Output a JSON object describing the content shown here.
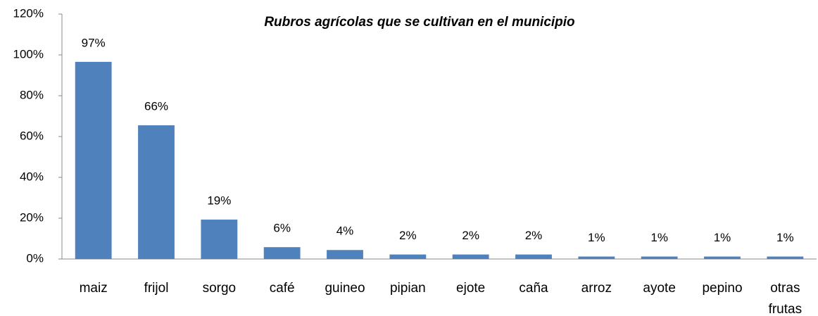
{
  "chart_data": {
    "type": "bar",
    "title": "Rubros agrícolas que se cultivan en el municipio",
    "categories": [
      "maiz",
      "frijol",
      "sorgo",
      "café",
      "guineo",
      "pipian",
      "ejote",
      "caña",
      "arroz",
      "ayote",
      "pepino",
      "otras frutas"
    ],
    "values": [
      96.6,
      65.5,
      19.3,
      5.8,
      4.4,
      2.2,
      2.2,
      2.2,
      1.2,
      1.2,
      1.2,
      1.2
    ],
    "value_labels": [
      "97%",
      "66%",
      "19%",
      "6%",
      "4%",
      "2%",
      "2%",
      "2%",
      "1%",
      "1%",
      "1%",
      "1%"
    ],
    "color": "#4f81bd",
    "ylim": [
      0,
      120
    ],
    "yticks": [
      {
        "value": 0,
        "label": "0%"
      },
      {
        "value": 20,
        "label": "20%"
      },
      {
        "value": 40,
        "label": "40%"
      },
      {
        "value": 60,
        "label": "60%"
      },
      {
        "value": 80,
        "label": "80%"
      },
      {
        "value": 100,
        "label": "100%"
      },
      {
        "value": 120,
        "label": "120%"
      }
    ],
    "grid": false
  }
}
